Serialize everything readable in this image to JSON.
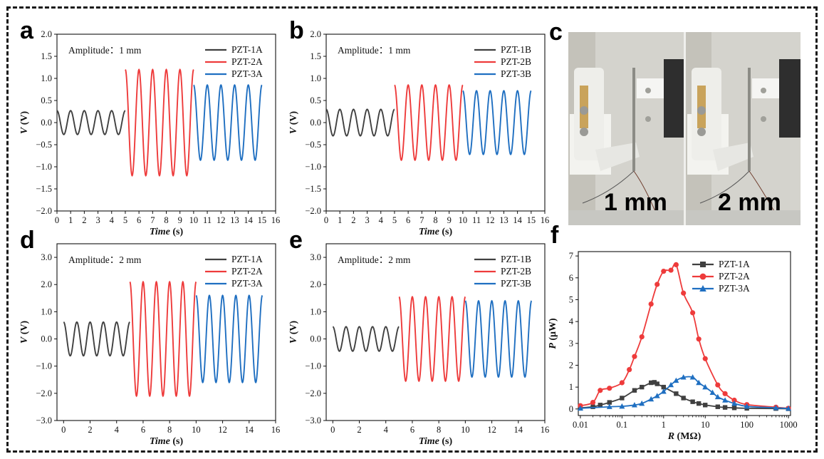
{
  "figure": {
    "panels": [
      "a",
      "b",
      "c",
      "d",
      "e",
      "f"
    ],
    "photo": {
      "letter": "c",
      "labels": [
        "1 mm",
        "2 mm"
      ]
    }
  },
  "chart_data": [
    {
      "id": "a",
      "letter": "a",
      "type": "line",
      "annotation": "Amplitude：1 mm",
      "xlabel_sym": "Time",
      "xlabel_unit": " (s)",
      "ylabel_sym": "V",
      "ylabel_unit": " (V)",
      "xlim": [
        0,
        16
      ],
      "ylim": [
        -2.0,
        2.0
      ],
      "xticks": [
        0,
        1,
        2,
        3,
        4,
        5,
        6,
        7,
        8,
        9,
        10,
        11,
        12,
        13,
        14,
        15,
        16
      ],
      "yticks": [
        -2.0,
        -1.5,
        -1.0,
        -0.5,
        0.0,
        0.5,
        1.0,
        1.5,
        2.0
      ],
      "ytick_labels": [
        "−2.0",
        "−1.5",
        "−1.0",
        "−0.5",
        "0.0",
        "0.5",
        "1.0",
        "1.5",
        "2.0"
      ],
      "series": [
        {
          "name": "PZT-1A",
          "color": "#404040",
          "t0": 0.0,
          "t1": 5.0,
          "amplitude": 0.27,
          "frequency": 1.0
        },
        {
          "name": "PZT-2A",
          "color": "#ee3b3b",
          "t0": 5.0,
          "t1": 10.0,
          "amplitude": 1.2,
          "frequency": 1.0
        },
        {
          "name": "PZT-3A",
          "color": "#1f6fc1",
          "t0": 10.0,
          "t1": 15.0,
          "amplitude": 0.85,
          "frequency": 1.0
        }
      ]
    },
    {
      "id": "b",
      "letter": "b",
      "type": "line",
      "annotation": "Amplitude：1 mm",
      "xlabel_sym": "Time",
      "xlabel_unit": " (s)",
      "ylabel_sym": "V",
      "ylabel_unit": " (V)",
      "xlim": [
        0,
        16
      ],
      "ylim": [
        -2.0,
        2.0
      ],
      "xticks": [
        0,
        1,
        2,
        3,
        4,
        5,
        6,
        7,
        8,
        9,
        10,
        11,
        12,
        13,
        14,
        15,
        16
      ],
      "yticks": [
        -2.0,
        -1.5,
        -1.0,
        -0.5,
        0.0,
        0.5,
        1.0,
        1.5,
        2.0
      ],
      "ytick_labels": [
        "−2.0",
        "−1.5",
        "−1.0",
        "−0.5",
        "0.0",
        "0.5",
        "1.0",
        "1.5",
        "2.0"
      ],
      "series": [
        {
          "name": "PZT-1B",
          "color": "#404040",
          "t0": 0.0,
          "t1": 5.0,
          "amplitude": 0.3,
          "frequency": 1.0
        },
        {
          "name": "PZT-2B",
          "color": "#ee3b3b",
          "t0": 5.0,
          "t1": 10.0,
          "amplitude": 0.85,
          "frequency": 1.0
        },
        {
          "name": "PZT-3B",
          "color": "#1f6fc1",
          "t0": 10.0,
          "t1": 15.0,
          "amplitude": 0.72,
          "frequency": 1.0
        }
      ]
    },
    {
      "id": "d",
      "letter": "d",
      "type": "line",
      "annotation": "Amplitude：2 mm",
      "xlabel_sym": "Time",
      "xlabel_unit": " (s)",
      "ylabel_sym": "V",
      "ylabel_unit": " (V)",
      "xlim": [
        -0.5,
        16
      ],
      "ylim": [
        -3.0,
        3.5
      ],
      "xticks": [
        0,
        2,
        4,
        6,
        8,
        10,
        12,
        14,
        16
      ],
      "yticks": [
        -3.0,
        -2.0,
        -1.0,
        0.0,
        1.0,
        2.0,
        3.0
      ],
      "ytick_labels": [
        "−3.0",
        "−2.0",
        "−1.0",
        "0.0",
        "1.0",
        "2.0",
        "3.0"
      ],
      "series": [
        {
          "name": "PZT-1A",
          "color": "#404040",
          "t0": 0.0,
          "t1": 5.0,
          "amplitude": 0.62,
          "frequency": 1.0
        },
        {
          "name": "PZT-2A",
          "color": "#ee3b3b",
          "t0": 5.0,
          "t1": 10.0,
          "amplitude": 2.1,
          "frequency": 1.0
        },
        {
          "name": "PZT-3A",
          "color": "#1f6fc1",
          "t0": 10.0,
          "t1": 15.0,
          "amplitude": 1.6,
          "frequency": 1.0
        }
      ]
    },
    {
      "id": "e",
      "letter": "e",
      "type": "line",
      "annotation": "Amplitude：2 mm",
      "xlabel_sym": "Time",
      "xlabel_unit": " (s)",
      "ylabel_sym": "V",
      "ylabel_unit": " (V)",
      "xlim": [
        -0.5,
        16
      ],
      "ylim": [
        -3.0,
        3.5
      ],
      "xticks": [
        0,
        2,
        4,
        6,
        8,
        10,
        12,
        14,
        16
      ],
      "yticks": [
        -3.0,
        -2.0,
        -1.0,
        0.0,
        1.0,
        2.0,
        3.0
      ],
      "ytick_labels": [
        "−3.0",
        "−2.0",
        "−1.0",
        "0.0",
        "1.0",
        "2.0",
        "3.0"
      ],
      "series": [
        {
          "name": "PZT-1B",
          "color": "#404040",
          "t0": 0.0,
          "t1": 5.0,
          "amplitude": 0.45,
          "frequency": 1.0
        },
        {
          "name": "PZT-2B",
          "color": "#ee3b3b",
          "t0": 5.0,
          "t1": 10.0,
          "amplitude": 1.55,
          "frequency": 1.0
        },
        {
          "name": "PZT-3B",
          "color": "#1f6fc1",
          "t0": 10.0,
          "t1": 15.0,
          "amplitude": 1.4,
          "frequency": 1.0
        }
      ]
    },
    {
      "id": "f",
      "letter": "f",
      "type": "scatter",
      "xlabel_sym": "R",
      "xlabel_unit": " (MΩ)",
      "ylabel_sym": "P",
      "ylabel_unit": " (μW)",
      "xscale": "log",
      "xlim": [
        0.01,
        1000
      ],
      "ylim": [
        -0.3,
        7.2
      ],
      "xticks": [
        0.01,
        0.1,
        1,
        10,
        100,
        1000
      ],
      "xtick_labels": [
        "0.01",
        "0.1",
        "1",
        "10",
        "100",
        "1000"
      ],
      "yticks": [
        0,
        1,
        2,
        3,
        4,
        5,
        6,
        7
      ],
      "ytick_labels": [
        "0",
        "1",
        "2",
        "3",
        "4",
        "5",
        "6",
        "7"
      ],
      "series": [
        {
          "name": "PZT-1A",
          "color": "#404040",
          "marker": "square",
          "x": [
            0.01,
            0.02,
            0.03,
            0.05,
            0.1,
            0.2,
            0.3,
            0.5,
            0.6,
            0.7,
            1,
            2,
            3,
            5,
            7,
            10,
            20,
            30,
            50,
            100,
            500,
            1000
          ],
          "y": [
            0.05,
            0.1,
            0.18,
            0.3,
            0.5,
            0.85,
            1.0,
            1.2,
            1.22,
            1.15,
            1.0,
            0.7,
            0.5,
            0.33,
            0.25,
            0.18,
            0.1,
            0.07,
            0.05,
            0.03,
            0.02,
            0.01
          ]
        },
        {
          "name": "PZT-2A",
          "color": "#ee3b3b",
          "marker": "circle",
          "x": [
            0.01,
            0.02,
            0.03,
            0.05,
            0.1,
            0.15,
            0.2,
            0.3,
            0.5,
            0.7,
            1,
            1.5,
            2,
            3,
            5,
            7,
            10,
            20,
            30,
            50,
            100,
            500,
            1000
          ],
          "y": [
            0.15,
            0.3,
            0.85,
            0.95,
            1.2,
            1.8,
            2.4,
            3.3,
            4.8,
            5.7,
            6.3,
            6.35,
            6.6,
            5.3,
            4.4,
            3.2,
            2.3,
            1.1,
            0.7,
            0.4,
            0.2,
            0.08,
            0.03
          ]
        },
        {
          "name": "PZT-3A",
          "color": "#1f6fc1",
          "marker": "triangle",
          "x": [
            0.01,
            0.05,
            0.1,
            0.2,
            0.3,
            0.5,
            0.7,
            1,
            1.5,
            2,
            3,
            5,
            7,
            10,
            15,
            20,
            30,
            50,
            100,
            500,
            1000
          ],
          "y": [
            0.03,
            0.1,
            0.12,
            0.18,
            0.25,
            0.45,
            0.6,
            0.8,
            1.1,
            1.3,
            1.45,
            1.45,
            1.2,
            1.0,
            0.75,
            0.55,
            0.4,
            0.25,
            0.12,
            0.05,
            0.02
          ]
        }
      ]
    }
  ]
}
